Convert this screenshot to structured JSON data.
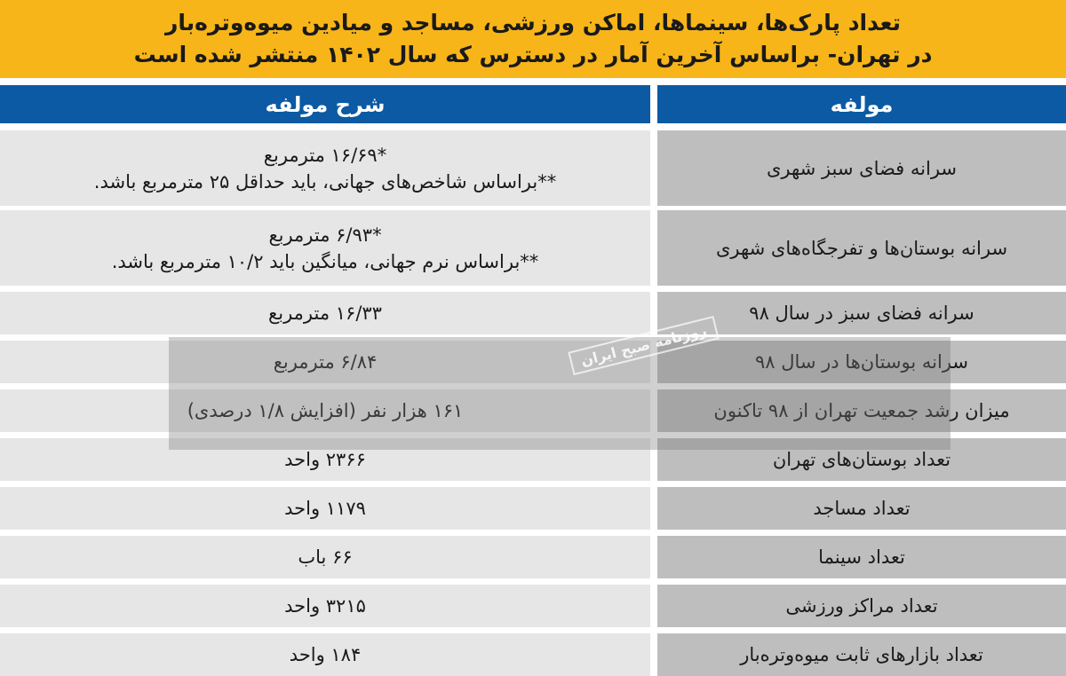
{
  "title": {
    "line1": "تعداد پارک‌ها، سینماها، اماکن ورزشی، مساجد و میادین میوه‌وتره‌بار",
    "line2": "در تهران- براساس آخرین آمار در دسترس که سال ۱۴۰۲ منتشر شده است"
  },
  "header": {
    "indicator": "مولفه",
    "description": "شرح مولفه"
  },
  "colors": {
    "title_bg": "#f7b519",
    "header_bg": "#0b5aa3"
  },
  "watermark": "روزنامه صبح ایران",
  "rows": [
    {
      "indicator": "سرانه فضای سبز شهری",
      "value": "*۱۶/۶۹ مترمربع",
      "note": "**براساس شاخص‌های جهانی، باید حداقل ۲۵ مترمربع باشد."
    },
    {
      "indicator": "سرانه بوستان‌ها و تفرجگاه‌های شهری",
      "value": "*۶/۹۳ مترمربع",
      "note": "**براساس نرم جهانی، میانگین باید ۱۰/۲ مترمربع باشد."
    },
    {
      "indicator": "سرانه فضای سبز در سال ۹۸",
      "value": "۱۶/۳۳ مترمربع"
    },
    {
      "indicator": "سرانه بوستان‌ها در سال ۹۸",
      "value": "۶/۸۴ مترمربع"
    },
    {
      "indicator": "میزان رشد جمعیت تهران از ۹۸ تاکنون",
      "value": "۱۶۱ هزار نفر (افزایش ۱/۸ درصدی)"
    },
    {
      "indicator": "تعداد بوستان‌های تهران",
      "value": "۲۳۶۶ واحد"
    },
    {
      "indicator": "تعداد مساجد",
      "value": "۱۱۷۹ واحد"
    },
    {
      "indicator": "تعداد سینما",
      "value": "۶۶ باب"
    },
    {
      "indicator": "تعداد مراکز ورزشی",
      "value": "۳۲۱۵ واحد"
    },
    {
      "indicator": "تعداد بازارهای ثابت میوه‌وتره‌بار",
      "value": "۱۸۴ واحد"
    }
  ]
}
